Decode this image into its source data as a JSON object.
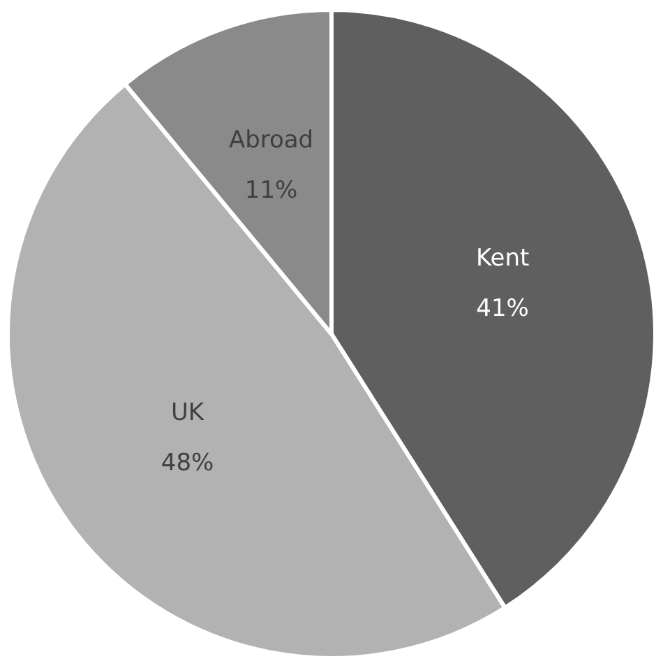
{
  "chart_data": {
    "type": "pie",
    "categories": [
      "Kent",
      "UK",
      "Abroad"
    ],
    "values": [
      41,
      48,
      11
    ],
    "colors": [
      "#5f5f5f",
      "#b2b2b2",
      "#8a8a8a"
    ],
    "value_labels": [
      "41%",
      "48%",
      "11%"
    ],
    "legend": false
  }
}
